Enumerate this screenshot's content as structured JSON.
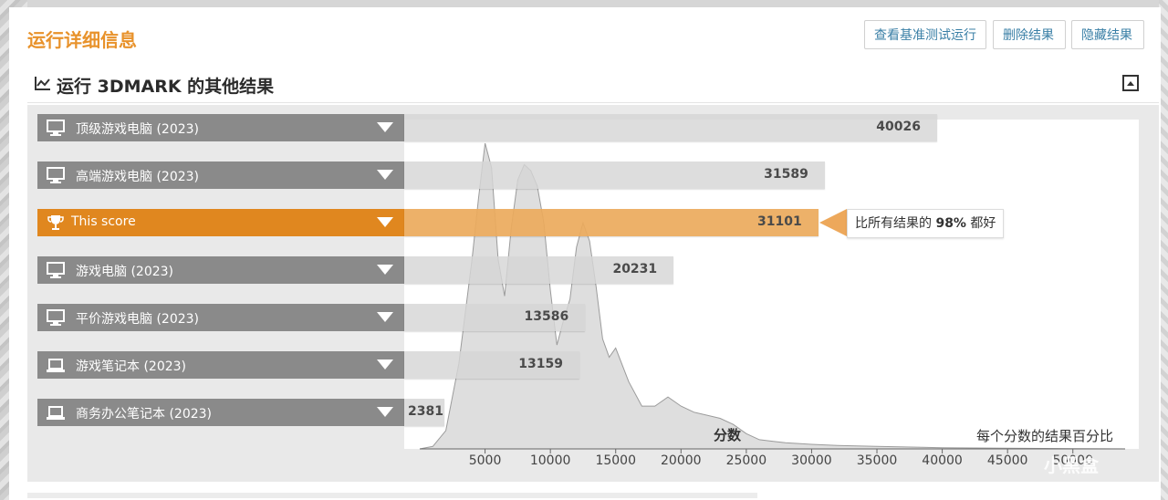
{
  "header": {
    "run_title": "运行详细信息",
    "compare_button": "查看基准测试运行",
    "delete_button": "删除结果",
    "hide_button": "隐藏结果"
  },
  "section": {
    "title": "运行 3DMARK 的其他结果"
  },
  "rows": [
    {
      "label": "顶级游戏电脑 (2023)",
      "value": "40026",
      "icon": "desktop-pc-icon"
    },
    {
      "label": "高端游戏电脑 (2023)",
      "value": "31589",
      "icon": "desktop-pc-icon"
    },
    {
      "label": "This score",
      "value": "31101",
      "icon": "trophy-icon",
      "highlight": true
    },
    {
      "label": "游戏电脑 (2023)",
      "value": "20231",
      "icon": "desktop-pc-icon"
    },
    {
      "label": "平价游戏电脑 (2023)",
      "value": "13586",
      "icon": "desktop-pc-icon"
    },
    {
      "label": "游戏笔记本 (2023)",
      "value": "13159",
      "icon": "laptop-icon"
    },
    {
      "label": "商务办公笔记本 (2023)",
      "value": "2381",
      "icon": "laptop-icon"
    }
  ],
  "callout": {
    "text_prefix": "比所有结果的 ",
    "percent": "98%",
    "text_suffix": " 都好"
  },
  "chart_data": {
    "type": "area",
    "xlabel": "分数",
    "note": "每个分数的结果百分比",
    "xlim": [
      0,
      54000
    ],
    "x_ticks": [
      "5000",
      "10000",
      "15000",
      "20000",
      "25000",
      "30000",
      "35000",
      "40000",
      "45000",
      "50000"
    ],
    "distribution": {
      "x": [
        0,
        1000,
        2000,
        3000,
        4000,
        4500,
        5000,
        5500,
        6000,
        6500,
        7000,
        7500,
        8000,
        8500,
        9000,
        9500,
        10000,
        10500,
        11000,
        11500,
        12000,
        12500,
        13000,
        13500,
        14000,
        14500,
        15000,
        16000,
        17000,
        18000,
        19000,
        20000,
        21000,
        22000,
        23000,
        24000,
        25000,
        26000,
        27000,
        28000,
        30000,
        32000,
        35000,
        40000,
        45000,
        50000,
        54000
      ],
      "y": [
        0,
        0.8,
        6,
        28,
        62,
        82,
        100,
        92,
        62,
        50,
        72,
        88,
        93,
        91,
        86,
        74,
        52,
        34,
        42,
        49,
        66,
        74,
        68,
        53,
        36,
        30,
        33,
        22,
        14,
        14,
        17,
        14,
        12,
        11,
        10,
        8,
        5,
        3,
        2.5,
        2,
        1.5,
        1.1,
        0.8,
        0.4,
        0.2,
        0.1,
        0
      ]
    },
    "bars": {
      "values": [
        40026,
        31589,
        31101,
        20231,
        13586,
        13159,
        2381
      ]
    }
  },
  "watermark": "小黑盒",
  "colors": {
    "accent": "#e8922b",
    "highlight_bar": "#eda85b",
    "label_bg": "#8a8a8a",
    "link": "#3a7fa6"
  }
}
